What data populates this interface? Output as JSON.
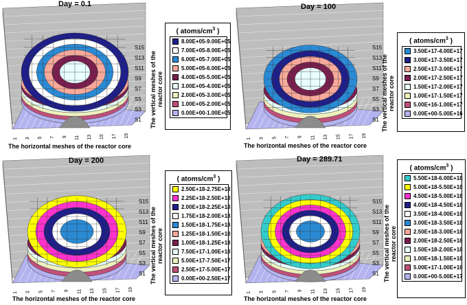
{
  "axis": {
    "xlabel": "The horizontal meshes of the reactor core",
    "ylabel": "The vertical meshes of the reactor core",
    "xticks": [
      "1",
      "3",
      "5",
      "7",
      "9",
      "11",
      "13",
      "15",
      "17",
      "19"
    ],
    "sticks": [
      "S15",
      "S13",
      "S11",
      "S9",
      "S7",
      "S5",
      "S3",
      "S1"
    ]
  },
  "legend_unit_prefix": "( atoms/cm",
  "legend_unit_exp": "3",
  "legend_unit_suffix": " )",
  "chart_data": [
    {
      "type": "surface3d",
      "title": "Day = 0.1",
      "legend": [
        {
          "label": "8.00E+05-9.00E+05",
          "color": "#1f1f8a"
        },
        {
          "label": "7.00E+05-8.00E+05",
          "color": "#ffffff"
        },
        {
          "label": "6.00E+05-7.00E+05",
          "color": "#2a8ad4"
        },
        {
          "label": "5.00E+05-6.00E+05",
          "color": "#f7a99a"
        },
        {
          "label": "4.00E+05-5.00E+05",
          "color": "#7a1f4f"
        },
        {
          "label": "3.00E+05-4.00E+05",
          "color": "#e8ffff"
        },
        {
          "label": "2.00E+05-3.00E+05",
          "color": "#eef0bd"
        },
        {
          "label": "1.00E+05-2.00E+05",
          "color": "#c0507a"
        },
        {
          "label": "0.00E+00-1.00E+05",
          "color": "#b3b3f0"
        }
      ]
    },
    {
      "type": "surface3d",
      "title": "Day = 100",
      "legend": [
        {
          "label": "3.50E+17-4.00E+17",
          "color": "#2a8ad4"
        },
        {
          "label": "3.00E+17-3.50E+17",
          "color": "#1f1f8a"
        },
        {
          "label": "2.50E+17-3.00E+17",
          "color": "#f7a99a"
        },
        {
          "label": "2.00E+17-2.50E+17",
          "color": "#7a1f4f"
        },
        {
          "label": "1.50E+17-2.00E+17",
          "color": "#e8ffff"
        },
        {
          "label": "1.00E+17-1.50E+17",
          "color": "#eef0bd"
        },
        {
          "label": "5.00E+16-1.00E+17",
          "color": "#c0507a"
        },
        {
          "label": "0.00E+00-5.00E+16",
          "color": "#b3b3f0"
        }
      ]
    },
    {
      "type": "surface3d",
      "title": "Day = 200",
      "legend": [
        {
          "label": "2.50E+18-2.75E+18",
          "color": "#ffff00"
        },
        {
          "label": "2.25E+18-2.50E+18",
          "color": "#ff33cc"
        },
        {
          "label": "2.00E+18-2.25E+18",
          "color": "#1f1f8a"
        },
        {
          "label": "1.75E+18-2.00E+18",
          "color": "#ffffff"
        },
        {
          "label": "1.50E+18-1.75E+18",
          "color": "#2a8ad4"
        },
        {
          "label": "1.25E+18-1.50E+18",
          "color": "#f7a99a"
        },
        {
          "label": "1.00E+18-1.25E+18",
          "color": "#7a1f4f"
        },
        {
          "label": "7.50E+17-1.00E+18",
          "color": "#e8ffff"
        },
        {
          "label": "5.00E+17-7.50E+17",
          "color": "#eef0bd"
        },
        {
          "label": "2.50E+17-5.00E+17",
          "color": "#c0507a"
        },
        {
          "label": "0.00E+00-2.50E+17",
          "color": "#b3b3f0"
        }
      ]
    },
    {
      "type": "surface3d",
      "title": "Day = 289.71",
      "legend": [
        {
          "label": "5.50E+18-6.00E+18",
          "color": "#33cccc"
        },
        {
          "label": "5.00E+18-5.50E+18",
          "color": "#ffff00"
        },
        {
          "label": "4.50E+18-5.00E+18",
          "color": "#ff33cc"
        },
        {
          "label": "4.00E+18-4.50E+18",
          "color": "#1f1f8a"
        },
        {
          "label": "3.50E+18-4.00E+18",
          "color": "#ffffff"
        },
        {
          "label": "3.00E+18-3.50E+18",
          "color": "#2a8ad4"
        },
        {
          "label": "2.50E+18-3.00E+18",
          "color": "#f7a99a"
        },
        {
          "label": "2.00E+18-2.50E+18",
          "color": "#7a1f4f"
        },
        {
          "label": "1.50E+18-2.00E+18",
          "color": "#e8ffff"
        },
        {
          "label": "1.00E+18-1.50E+18",
          "color": "#eef0bd"
        },
        {
          "label": "5.00E+17-1.00E+18",
          "color": "#c0507a"
        },
        {
          "label": "0.00E+00-5.00E+17",
          "color": "#b3b3f0"
        }
      ]
    }
  ]
}
